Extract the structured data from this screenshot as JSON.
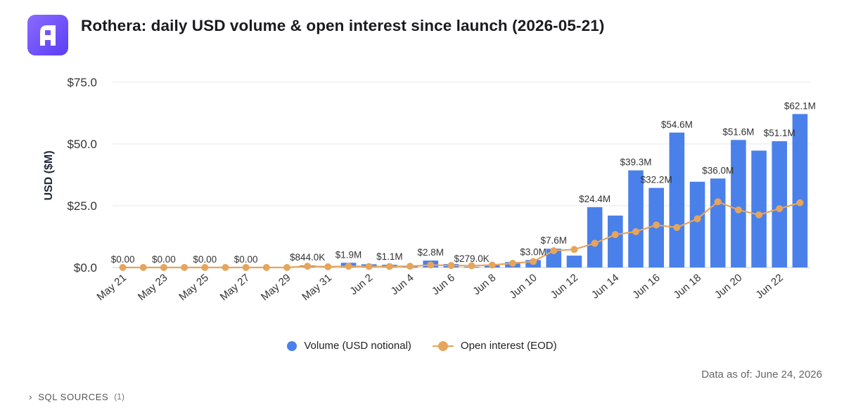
{
  "header": {
    "title": "Rothera: daily USD volume & open interest since launch (2026-05-21)"
  },
  "logo": {
    "icon": "rothera-logo-icon",
    "color_start": "#8a6bff",
    "color_end": "#5b3df5"
  },
  "footer": {
    "as_of_label": "Data as of:",
    "as_of_value": "June 24, 2026",
    "sql_label": "SQL SOURCES",
    "sql_count": "(1)"
  },
  "chart_data": {
    "type": "bar",
    "title": "Rothera: daily USD volume & open interest since launch (2026-05-21)",
    "ylabel": "USD ($M)",
    "xlabel": "",
    "ylim": [
      0,
      75
    ],
    "yticks": [
      0,
      25,
      50,
      75
    ],
    "ytick_labels": [
      "$0.0",
      "$25.0",
      "$50.0",
      "$75.0"
    ],
    "grid": true,
    "legend_position": "bottom",
    "categories": [
      "May 21",
      "May 22",
      "May 23",
      "May 24",
      "May 25",
      "May 26",
      "May 27",
      "May 28",
      "May 29",
      "May 30",
      "May 31",
      "Jun 1",
      "Jun 2",
      "Jun 3",
      "Jun 4",
      "Jun 5",
      "Jun 6",
      "Jun 7",
      "Jun 8",
      "Jun 9",
      "Jun 10",
      "Jun 11",
      "Jun 12",
      "Jun 13",
      "Jun 14",
      "Jun 15",
      "Jun 16",
      "Jun 17",
      "Jun 18",
      "Jun 19",
      "Jun 20",
      "Jun 21",
      "Jun 22",
      "Jun 23"
    ],
    "xtick_labels": [
      "May 21",
      "",
      "May 23",
      "",
      "May 25",
      "",
      "May 27",
      "",
      "May 29",
      "",
      "May 31",
      "",
      "Jun 2",
      "",
      "Jun 4",
      "",
      "Jun 6",
      "",
      "Jun 8",
      "",
      "Jun 10",
      "",
      "Jun 12",
      "",
      "Jun 14",
      "",
      "Jun 16",
      "",
      "Jun 18",
      "",
      "Jun 20",
      "",
      "Jun 22",
      ""
    ],
    "series": [
      {
        "name": "Volume (USD notional)",
        "type": "bar",
        "color": "#4a80ea",
        "values": [
          0,
          0,
          0,
          0,
          0,
          0,
          0,
          0,
          0,
          0.844,
          0.6,
          1.9,
          1.3,
          1.1,
          0.5,
          2.8,
          1.4,
          0.279,
          0.9,
          2.2,
          3.0,
          7.6,
          4.8,
          24.4,
          21.0,
          39.3,
          32.2,
          54.6,
          34.7,
          36.0,
          51.6,
          47.3,
          51.1,
          62.1
        ],
        "labels": [
          "$0.00",
          "",
          "$0.00",
          "",
          "$0.00",
          "",
          "$0.00",
          "",
          "",
          "$844.0K",
          "",
          "$1.9M",
          "",
          "$1.1M",
          "",
          "$2.8M",
          "",
          "$279.0K",
          "",
          "",
          "$3.0M",
          "$7.6M",
          "",
          "$24.4M",
          "",
          "$39.3M",
          "$32.2M",
          "$54.6M",
          "",
          "$36.0M",
          "$51.6M",
          "",
          "$51.1M",
          "$62.1M"
        ]
      },
      {
        "name": "Open interest (EOD)",
        "type": "line",
        "color": "#e6a55b",
        "values": [
          0,
          0,
          0,
          0,
          0,
          0,
          0,
          0,
          0,
          0.5,
          0.3,
          0.5,
          0.4,
          0.4,
          0.5,
          1.0,
          0.8,
          0.7,
          1.0,
          1.7,
          2.4,
          6.8,
          7.3,
          9.8,
          13.3,
          14.5,
          17.2,
          16.2,
          19.7,
          26.6,
          23.3,
          21.3,
          23.8,
          26.2
        ]
      }
    ]
  }
}
